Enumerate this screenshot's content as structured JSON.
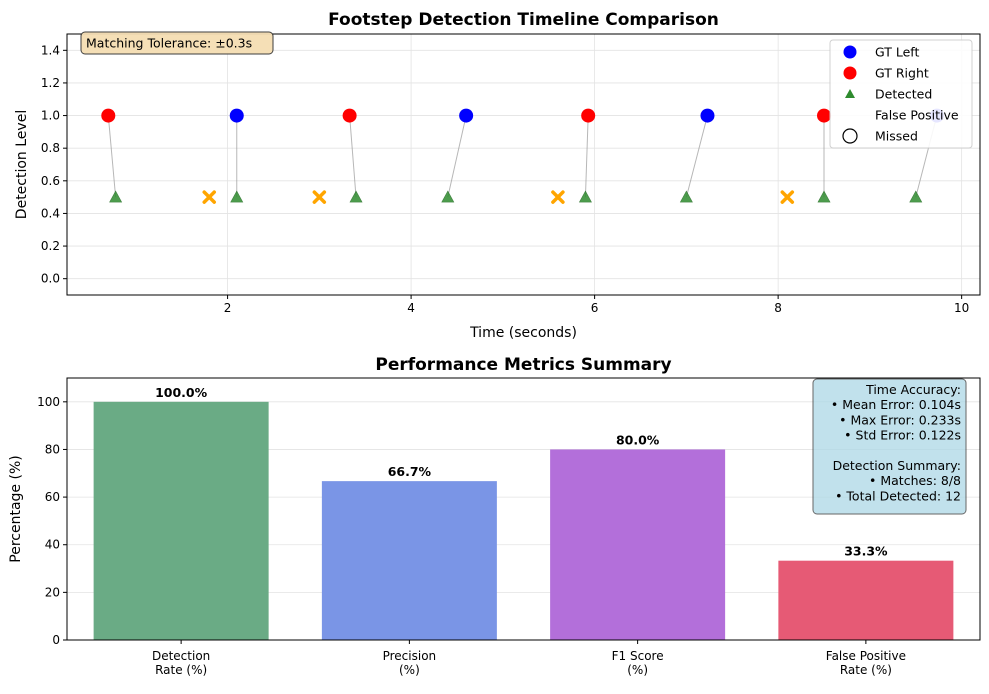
{
  "chart_data": [
    {
      "type": "scatter",
      "title": "Footstep Detection Timeline Comparison",
      "xlabel": "Time (seconds)",
      "ylabel": "Detection Level",
      "xlim": [
        0.25,
        10.2
      ],
      "ylim": [
        -0.1,
        1.5
      ],
      "xticks": [
        2,
        4,
        6,
        8,
        10
      ],
      "yticks": [
        0.0,
        0.2,
        0.4,
        0.6,
        0.8,
        1.0,
        1.2,
        1.4
      ],
      "xtick_labels": [
        "2",
        "4",
        "6",
        "8",
        "10"
      ],
      "ytick_labels": [
        "0.0",
        "0.2",
        "0.4",
        "0.6",
        "0.8",
        "1.0",
        "1.2",
        "1.4"
      ],
      "grid": true,
      "legend_position": "top-right",
      "annotation": "Matching Tolerance: ±0.3s",
      "colors": {
        "left": "#0000ff",
        "right": "#ff0000",
        "detected": "#2e8b2e",
        "false_positive": "#ffa500",
        "match_line": "#999999"
      },
      "series": [
        {
          "name": "GT Left",
          "marker": "circle",
          "points": [
            [
              2.1,
              1.0
            ],
            [
              4.6,
              1.0
            ],
            [
              7.23,
              1.0
            ],
            [
              9.73,
              1.0
            ]
          ]
        },
        {
          "name": "GT Right",
          "marker": "circle",
          "points": [
            [
              0.7,
              1.0
            ],
            [
              3.33,
              1.0
            ],
            [
              5.93,
              1.0
            ],
            [
              8.5,
              1.0
            ]
          ]
        },
        {
          "name": "Detected",
          "marker": "triangle",
          "points": [
            [
              0.78,
              0.5
            ],
            [
              2.1,
              0.5
            ],
            [
              3.4,
              0.5
            ],
            [
              4.4,
              0.5
            ],
            [
              5.9,
              0.5
            ],
            [
              7.0,
              0.5
            ],
            [
              8.5,
              0.5
            ],
            [
              9.5,
              0.5
            ]
          ]
        },
        {
          "name": "False Positive",
          "marker": "x",
          "points": [
            [
              1.8,
              0.5
            ],
            [
              3.0,
              0.5
            ],
            [
              5.6,
              0.5
            ],
            [
              8.1,
              0.5
            ]
          ]
        },
        {
          "name": "Missed",
          "marker": "hollow-circle",
          "points": []
        }
      ],
      "matches": [
        [
          0.7,
          0.78
        ],
        [
          2.1,
          2.1
        ],
        [
          3.33,
          3.4
        ],
        [
          4.6,
          4.4
        ],
        [
          5.93,
          5.9
        ],
        [
          7.23,
          7.0
        ],
        [
          8.5,
          8.5
        ],
        [
          9.73,
          9.5
        ]
      ]
    },
    {
      "type": "bar",
      "title": "Performance Metrics Summary",
      "xlabel": "",
      "ylabel": "Percentage (%)",
      "ylim": [
        0,
        110
      ],
      "yticks": [
        0,
        20,
        40,
        60,
        80,
        100
      ],
      "ytick_labels": [
        "0",
        "20",
        "40",
        "60",
        "80",
        "100"
      ],
      "categories": [
        [
          "Detection",
          "Rate (%)"
        ],
        [
          "Precision",
          "(%)"
        ],
        [
          "F1 Score",
          "(%)"
        ],
        [
          "False Positive",
          "Rate (%)"
        ]
      ],
      "values": [
        100.0,
        66.7,
        80.0,
        33.3
      ],
      "value_labels": [
        "100.0%",
        "66.7%",
        "80.0%",
        "33.3%"
      ],
      "colors": [
        "#6aab85",
        "#7a95e6",
        "#b36fda",
        "#e65a75"
      ],
      "grid": true,
      "info_box": [
        "Time Accuracy:",
        "• Mean Error: 0.104s",
        "• Max Error: 0.233s",
        "• Std Error: 0.122s",
        "",
        "Detection Summary:",
        "• Matches: 8/8",
        "• Total Detected: 12"
      ]
    }
  ]
}
